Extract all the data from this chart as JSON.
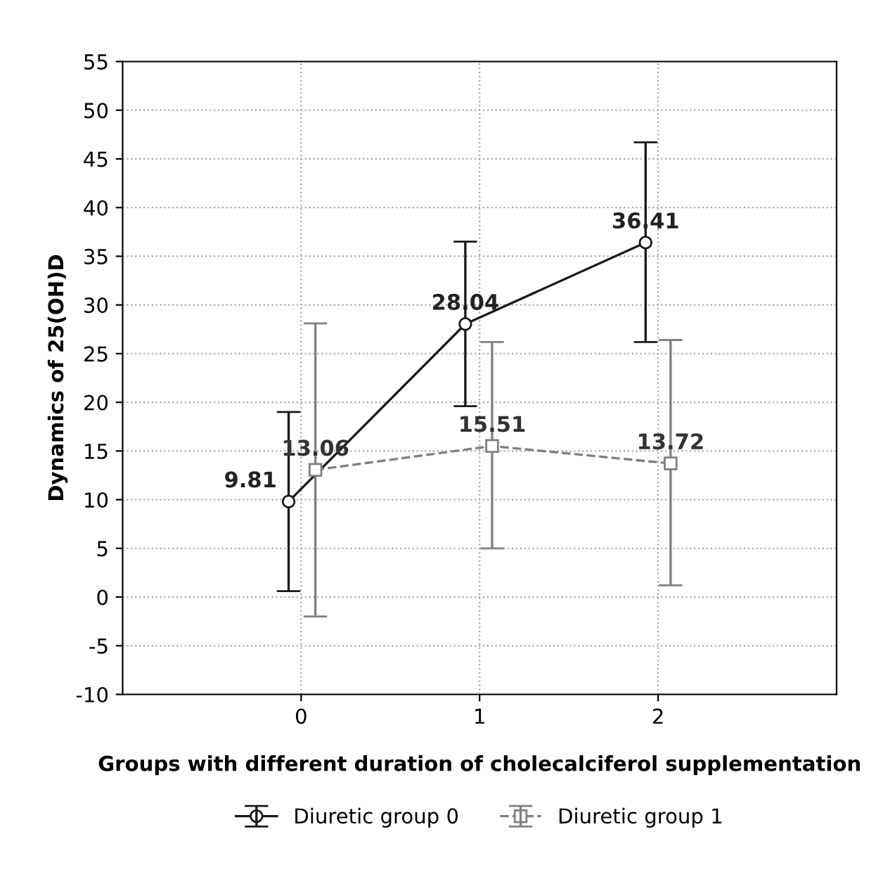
{
  "chart_data": {
    "type": "line",
    "xlabel": "Groups with different duration of cholecalciferol supplementation",
    "ylabel": "Dynamics of 25(OH)D",
    "xlim": [
      -1,
      3
    ],
    "xticks": [
      0,
      1,
      2
    ],
    "ylim": [
      -10,
      55
    ],
    "yticks": [
      -10,
      -5,
      0,
      5,
      10,
      15,
      20,
      25,
      30,
      35,
      40,
      45,
      50,
      55
    ],
    "grid": true,
    "legend": "bottom",
    "data_labels": true,
    "series": [
      {
        "name": "Diuretic group 0",
        "color": "#1a1a1a",
        "marker": "circle",
        "line_style": "solid",
        "x": [
          -0.07,
          0.92,
          1.93
        ],
        "values": [
          9.81,
          28.04,
          36.41
        ],
        "errors": [
          [
            0.6,
            19.0
          ],
          [
            19.6,
            36.5
          ],
          [
            26.2,
            46.7
          ]
        ]
      },
      {
        "name": "Diuretic group 1",
        "color": "#808080",
        "marker": "square",
        "line_style": "dashed",
        "x": [
          0.08,
          1.07,
          2.07
        ],
        "values": [
          13.06,
          15.51,
          13.72
        ],
        "errors": [
          [
            -2.0,
            28.1
          ],
          [
            5.0,
            26.2
          ],
          [
            1.2,
            26.4
          ]
        ]
      }
    ]
  }
}
